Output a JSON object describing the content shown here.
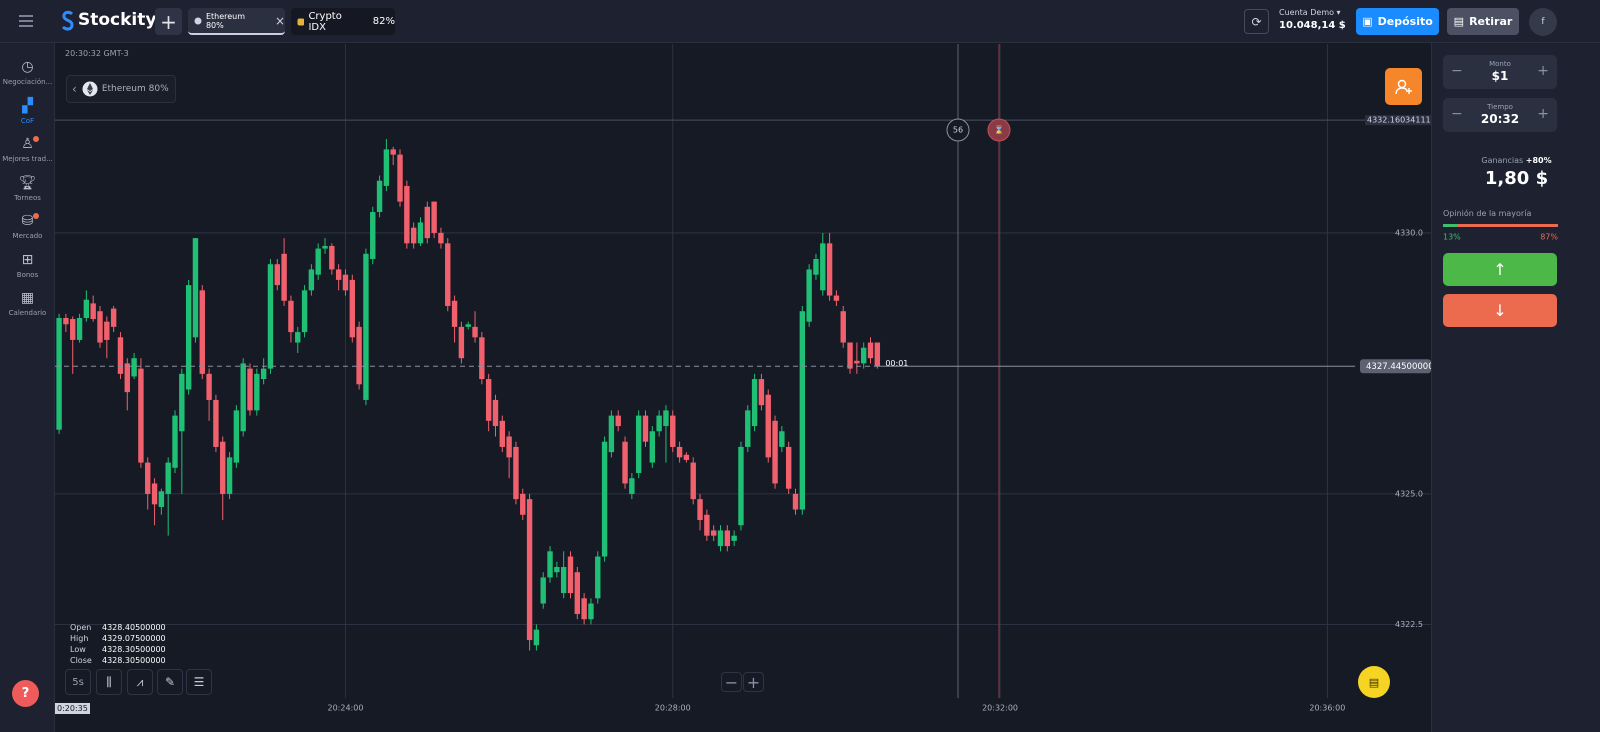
{
  "header": {
    "brand": "Stockity",
    "tabs": [
      {
        "label": "Ethereum 80%"
      },
      {
        "label": "Crypto IDX",
        "payout": "82%"
      }
    ],
    "account": "Cuenta Demo",
    "balance": "10.048,14 $",
    "deposit": "Depósito",
    "withdraw": "Retirar",
    "avatar": "f"
  },
  "sidebar": {
    "items": [
      "Negociación...",
      "CoF",
      "Mejores trad...",
      "Torneos",
      "Mercado",
      "Bonos",
      "Calendario"
    ]
  },
  "chart_header": {
    "clock": "20:30:32 GMT-3",
    "asset": "Ethereum 80%",
    "crosshair_time": "0:20:35",
    "timer": "00:01",
    "countdown": "56"
  },
  "ohlc": {
    "labels": [
      "Open",
      "High",
      "Low",
      "Close"
    ],
    "values": [
      "4328.40500000",
      "4329.07500000",
      "4328.30500000",
      "4328.30500000"
    ]
  },
  "toolbar": {
    "interval": "5s"
  },
  "trade_panel": {
    "amount_label": "Monto",
    "amount": "$1",
    "time_label": "Tiempo",
    "time": "20:32",
    "profit_label": "Ganancias",
    "profit_rate": "+80%",
    "profit": "1,80 $",
    "opinion_title": "Opinión de la mayoría",
    "opinion": {
      "values": [
        13,
        87
      ],
      "value_labels": [
        "13%",
        "87%"
      ],
      "colors": [
        "#3fbf6a",
        "#ec6b4f"
      ]
    }
  },
  "chart_data": {
    "type": "candlestick",
    "up_color": "#1fbf75",
    "down_color": "#f0616d",
    "xlim": [
      "20:20:27",
      "20:37:16"
    ],
    "xticks": [
      "20:24:00",
      "20:28:00",
      "20:32:00",
      "20:36:00"
    ],
    "ylim": [
      4321.09,
      4333.6
    ],
    "yticks": [
      {
        "value": 4322.5,
        "label": "4322.5"
      },
      {
        "value": 4325,
        "label": "4325.0"
      },
      {
        "value": 4330,
        "label": "4330.0"
      }
    ],
    "grid": true,
    "current_price": 4327.445,
    "current_price_label": "4327.44500000",
    "level": 4332.16034111,
    "level_label": "4332.16034111",
    "x": [
      "20:20:30",
      "20:20:35",
      "20:20:40",
      "20:20:45",
      "20:20:50",
      "20:20:55",
      "20:21:00",
      "20:21:05",
      "20:21:10",
      "20:21:15",
      "20:21:20",
      "20:21:25",
      "20:21:30",
      "20:21:35",
      "20:21:40",
      "20:21:45",
      "20:21:50",
      "20:21:55",
      "20:22:00",
      "20:22:05",
      "20:22:10",
      "20:22:15",
      "20:22:20",
      "20:22:25",
      "20:22:30",
      "20:22:35",
      "20:22:40",
      "20:22:45",
      "20:22:50",
      "20:22:55",
      "20:23:00",
      "20:23:05",
      "20:23:10",
      "20:23:15",
      "20:23:20",
      "20:23:25",
      "20:23:30",
      "20:23:35",
      "20:23:40",
      "20:23:45",
      "20:23:50",
      "20:23:55",
      "20:24:00",
      "20:24:05",
      "20:24:10",
      "20:24:15",
      "20:24:20",
      "20:24:25",
      "20:24:30",
      "20:24:35",
      "20:24:40",
      "20:24:45",
      "20:24:50",
      "20:24:55",
      "20:25:00",
      "20:25:05",
      "20:25:10",
      "20:25:15",
      "20:25:20",
      "20:25:25",
      "20:25:30",
      "20:25:35",
      "20:25:40",
      "20:25:45",
      "20:25:50",
      "20:25:55",
      "20:26:00",
      "20:26:05",
      "20:26:10",
      "20:26:15",
      "20:26:20",
      "20:26:25",
      "20:26:30",
      "20:26:35",
      "20:26:40",
      "20:26:45",
      "20:26:50",
      "20:26:55",
      "20:27:00",
      "20:27:05",
      "20:27:10",
      "20:27:15",
      "20:27:20",
      "20:27:25",
      "20:27:30",
      "20:27:35",
      "20:27:40",
      "20:27:45",
      "20:27:50",
      "20:27:55",
      "20:28:00",
      "20:28:05",
      "20:28:10",
      "20:28:15",
      "20:28:20",
      "20:28:25",
      "20:28:30",
      "20:28:35",
      "20:28:40",
      "20:28:45",
      "20:28:50",
      "20:28:55",
      "20:29:00",
      "20:29:05",
      "20:29:10",
      "20:29:15",
      "20:29:20",
      "20:29:25",
      "20:29:30",
      "20:29:35",
      "20:29:40",
      "20:29:45",
      "20:29:50",
      "20:29:55",
      "20:30:00",
      "20:30:05",
      "20:30:10",
      "20:30:15",
      "20:30:20",
      "20:30:25",
      "20:30:30"
    ],
    "open": [
      4326.23,
      4328.37,
      4328.35,
      4327.95,
      4328.37,
      4328.65,
      4328.5,
      4328.3,
      4328.55,
      4328.0,
      4327.5,
      4327.25,
      4327.4,
      4325.6,
      4325.2,
      4324.75,
      4325.0,
      4325.5,
      4326.2,
      4327.0,
      4328.0,
      4328.9,
      4327.3,
      4326.8,
      4326.0,
      4325.0,
      4325.6,
      4326.2,
      4327.4,
      4326.6,
      4327.2,
      4327.4,
      4329.4,
      4329.6,
      4328.7,
      4327.9,
      4328.1,
      4328.9,
      4329.2,
      4329.7,
      4329.75,
      4329.3,
      4329.2,
      4329.1,
      4328.2,
      4326.8,
      4329.5,
      4330.4,
      4330.9,
      4331.6,
      4331.5,
      4330.9,
      4330.1,
      4329.8,
      4330.5,
      4330.6,
      4330.0,
      4329.8,
      4328.7,
      4328.2,
      4328.2,
      4328.2,
      4328.0,
      4327.2,
      4326.8,
      4326.4,
      4326.1,
      4325.9,
      4325.0,
      4324.9,
      4322.1,
      4322.9,
      4323.4,
      4323.5,
      4323.1,
      4323.8,
      4323.5,
      4323.0,
      4322.6,
      4323.0,
      4323.8,
      4325.8,
      4326.5,
      4326.0,
      4325.0,
      4325.4,
      4326.5,
      4325.6,
      4326.2,
      4326.3,
      4326.5,
      4325.9,
      4325.75,
      4325.6,
      4324.9,
      4324.6,
      4324.3,
      4324.0,
      4324.3,
      4324.1,
      4324.4,
      4325.9,
      4326.3,
      4327.2,
      4326.9,
      4326.4,
      4325.9,
      4325.9,
      4325.0,
      4324.7,
      4328.3,
      4329.2,
      4328.9,
      4329.8,
      4328.8,
      4328.5,
      4327.9,
      4327.55,
      4327.5,
      4327.9,
      4327.9
    ],
    "high": [
      4328.45,
      4328.45,
      4328.4,
      4328.45,
      4328.9,
      4328.8,
      4328.6,
      4328.4,
      4328.6,
      4328.1,
      4327.6,
      4327.7,
      4327.6,
      4325.7,
      4325.3,
      4325.1,
      4325.7,
      4326.6,
      4327.4,
      4329.1,
      4329.9,
      4329.0,
      4327.4,
      4326.9,
      4326.1,
      4325.8,
      4326.7,
      4327.6,
      4327.5,
      4327.4,
      4327.6,
      4329.5,
      4329.5,
      4329.9,
      4328.8,
      4328.2,
      4329.0,
      4329.4,
      4329.8,
      4329.9,
      4329.8,
      4329.4,
      4329.3,
      4329.2,
      4328.3,
      4329.7,
      4330.5,
      4331.1,
      4331.8,
      4331.65,
      4331.6,
      4331.0,
      4330.2,
      4330.3,
      4330.6,
      4330.6,
      4330.1,
      4329.9,
      4328.8,
      4328.3,
      4328.3,
      4328.5,
      4328.1,
      4327.3,
      4326.9,
      4326.5,
      4326.2,
      4326.0,
      4325.1,
      4325.0,
      4322.5,
      4323.5,
      4324.0,
      4323.7,
      4323.9,
      4323.9,
      4323.6,
      4323.1,
      4323.0,
      4323.9,
      4326.1,
      4326.6,
      4326.6,
      4326.1,
      4325.4,
      4326.6,
      4326.6,
      4326.3,
      4326.6,
      4326.7,
      4326.6,
      4326.0,
      4325.8,
      4325.7,
      4325.0,
      4324.7,
      4324.4,
      4324.4,
      4324.4,
      4324.3,
      4326.0,
      4326.7,
      4327.3,
      4327.3,
      4327.0,
      4326.5,
      4326.3,
      4326.0,
      4325.1,
      4328.6,
      4329.4,
      4329.6,
      4330.0,
      4330.0,
      4328.9,
      4328.6,
      4327.9,
      4327.9,
      4327.9,
      4328.0,
      4327.9
    ],
    "low": [
      4326.15,
      4328.1,
      4327.3,
      4327.9,
      4328.3,
      4328.3,
      4327.8,
      4327.6,
      4328.1,
      4327.2,
      4326.6,
      4327.2,
      4325.5,
      4324.7,
      4324.4,
      4324.6,
      4324.2,
      4325.4,
      4325.0,
      4326.9,
      4327.9,
      4327.2,
      4326.4,
      4325.8,
      4324.5,
      4324.9,
      4325.5,
      4326.1,
      4326.5,
      4326.5,
      4327.1,
      4327.3,
      4328.9,
      4328.6,
      4327.9,
      4327.7,
      4328.0,
      4328.8,
      4329.1,
      4329.6,
      4329.2,
      4328.9,
      4328.8,
      4327.9,
      4327.0,
      4326.7,
      4329.4,
      4330.3,
      4330.8,
      4331.3,
      4330.5,
      4329.7,
      4329.7,
      4329.75,
      4329.8,
      4329.9,
      4329.7,
      4328.5,
      4327.9,
      4327.5,
      4328.15,
      4327.9,
      4327.1,
      4326.2,
      4326.1,
      4325.8,
      4325.3,
      4324.8,
      4324.5,
      4322.0,
      4322.0,
      4322.8,
      4323.3,
      4323.4,
      4323.0,
      4323.0,
      4322.6,
      4322.5,
      4322.5,
      4322.9,
      4323.7,
      4325.7,
      4326.2,
      4325.1,
      4324.9,
      4325.3,
      4325.9,
      4325.5,
      4326.1,
      4325.6,
      4325.8,
      4325.6,
      4325.6,
      4324.8,
      4324.3,
      4324.1,
      4324.1,
      4323.9,
      4323.9,
      4324.0,
      4324.3,
      4325.8,
      4326.2,
      4326.6,
      4325.6,
      4325.1,
      4325.8,
      4325.0,
      4324.6,
      4324.6,
      4328.2,
      4329.1,
      4328.8,
      4328.7,
      4328.6,
      4327.8,
      4327.3,
      4327.3,
      4327.4,
      4327.5,
      4327.4
    ],
    "close": [
      4328.37,
      4328.25,
      4327.95,
      4328.37,
      4328.72,
      4328.35,
      4327.9,
      4327.95,
      4328.2,
      4327.3,
      4326.95,
      4327.6,
      4325.6,
      4325.0,
      4324.8,
      4325.05,
      4325.6,
      4326.5,
      4327.3,
      4329.0,
      4329.9,
      4327.3,
      4326.8,
      4325.9,
      4325.0,
      4325.7,
      4326.6,
      4327.5,
      4326.6,
      4327.3,
      4327.4,
      4329.4,
      4329.0,
      4328.7,
      4328.1,
      4328.1,
      4328.9,
      4329.3,
      4329.7,
      4329.75,
      4329.3,
      4329.1,
      4328.9,
      4328.0,
      4327.1,
      4329.6,
      4330.4,
      4331.0,
      4331.6,
      4331.5,
      4330.6,
      4329.8,
      4329.8,
      4330.2,
      4329.9,
      4330.0,
      4329.8,
      4328.6,
      4328.2,
      4327.6,
      4328.25,
      4328.0,
      4327.2,
      4326.4,
      4326.3,
      4325.9,
      4325.7,
      4324.9,
      4324.6,
      4322.2,
      4322.4,
      4323.4,
      4323.9,
      4323.6,
      4323.6,
      4323.1,
      4322.7,
      4322.6,
      4322.9,
      4323.8,
      4326.0,
      4326.5,
      4326.3,
      4325.2,
      4325.3,
      4326.5,
      4326.0,
      4326.2,
      4326.5,
      4326.6,
      4325.9,
      4325.7,
      4325.65,
      4324.9,
      4324.5,
      4324.2,
      4324.2,
      4324.3,
      4324.0,
      4324.2,
      4325.9,
      4326.6,
      4327.2,
      4326.7,
      4325.7,
      4325.2,
      4326.2,
      4325.1,
      4324.7,
      4328.5,
      4329.3,
      4329.5,
      4329.8,
      4328.8,
      4328.7,
      4327.9,
      4327.4,
      4327.5,
      4327.8,
      4327.6,
      4327.445
    ]
  }
}
